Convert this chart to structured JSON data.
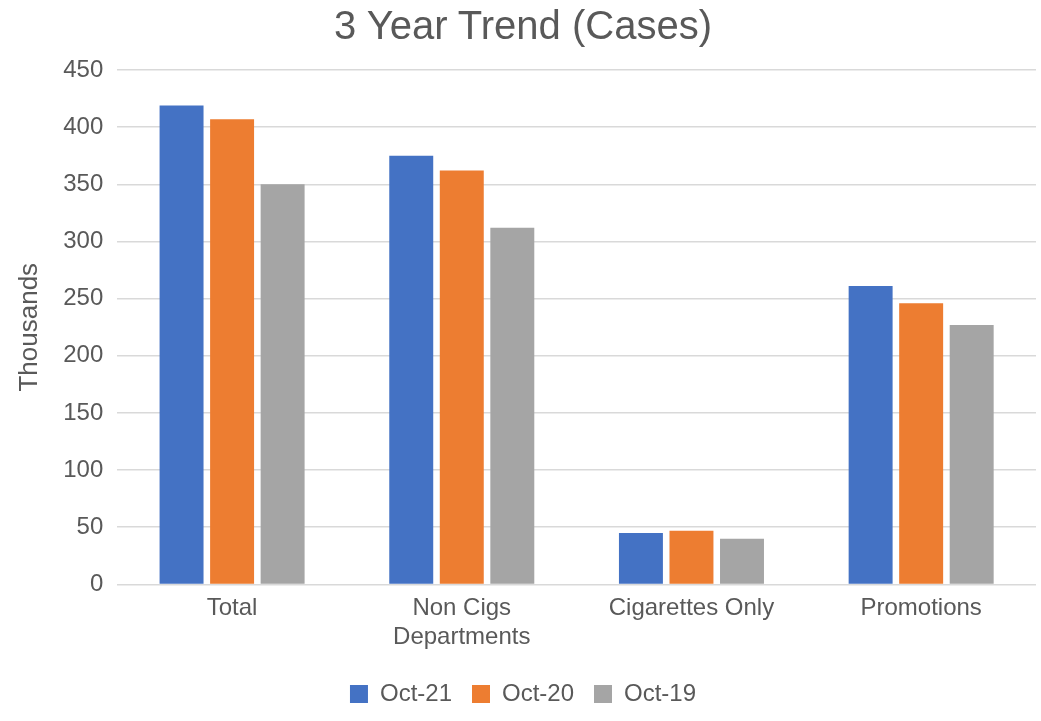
{
  "chart_data": {
    "type": "bar",
    "title": "3 Year Trend (Cases)",
    "ylabel": "Thousands",
    "categories": [
      "Total",
      "Non Cigs Departments",
      "Cigarettes Only",
      "Promotions"
    ],
    "series": [
      {
        "name": "Oct-21",
        "color": "#4472c4",
        "values": [
          419,
          375,
          45,
          261
        ]
      },
      {
        "name": "Oct-20",
        "color": "#ed7d31",
        "values": [
          407,
          362,
          47,
          246
        ]
      },
      {
        "name": "Oct-19",
        "color": "#a5a5a5",
        "values": [
          350,
          312,
          40,
          227
        ]
      }
    ],
    "ylim": [
      0,
      450
    ],
    "yticks": [
      0,
      50,
      100,
      150,
      200,
      250,
      300,
      350,
      400,
      450
    ],
    "grid": "y",
    "legend": "bottom"
  }
}
